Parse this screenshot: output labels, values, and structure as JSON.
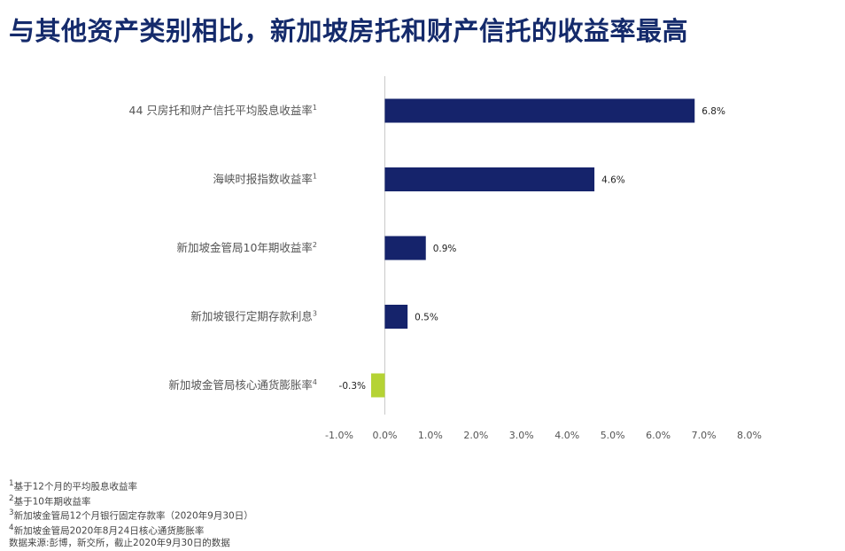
{
  "title": "与其他资产类别相比，新加坡房托和财产信托的收益率最高",
  "chart_data": {
    "type": "bar",
    "orientation": "horizontal",
    "categories": [
      {
        "label": "44 只房托和财产信托平均股息收益率",
        "sup": "1"
      },
      {
        "label": "海峡时报指数收益率",
        "sup": "1"
      },
      {
        "label": "新加坡金管局10年期收益率",
        "sup": "2"
      },
      {
        "label": "新加坡银行定期存款利息",
        "sup": "3"
      },
      {
        "label": "新加坡金管局核心通货膨胀率",
        "sup": "4"
      }
    ],
    "values": [
      6.8,
      4.6,
      0.9,
      0.5,
      -0.3
    ],
    "data_labels": [
      "6.8%",
      "4.6%",
      "0.9%",
      "0.5%",
      "-0.3%"
    ],
    "xlim": [
      -1.0,
      8.0
    ],
    "xticks": [
      "-1.0%",
      "0.0%",
      "1.0%",
      "2.0%",
      "3.0%",
      "4.0%",
      "5.0%",
      "6.0%",
      "7.0%",
      "8.0%"
    ],
    "grid": false,
    "colors": {
      "positive": "#15236b",
      "negative": "#b5d334",
      "zero_line": "#c8c8c8"
    }
  },
  "footnotes": [
    {
      "sup": "1",
      "text": "基于12个月的平均股息收益率"
    },
    {
      "sup": "2",
      "text": "基于10年期收益率"
    },
    {
      "sup": "3",
      "text": "新加坡金管局12个月银行固定存款率（2020年9月30日）"
    },
    {
      "sup": "4",
      "text": "新加坡金管局2020年8月24日核心通货膨胀率"
    }
  ],
  "source": "数据来源:彭博，新交所，截止2020年9月30日的数据"
}
